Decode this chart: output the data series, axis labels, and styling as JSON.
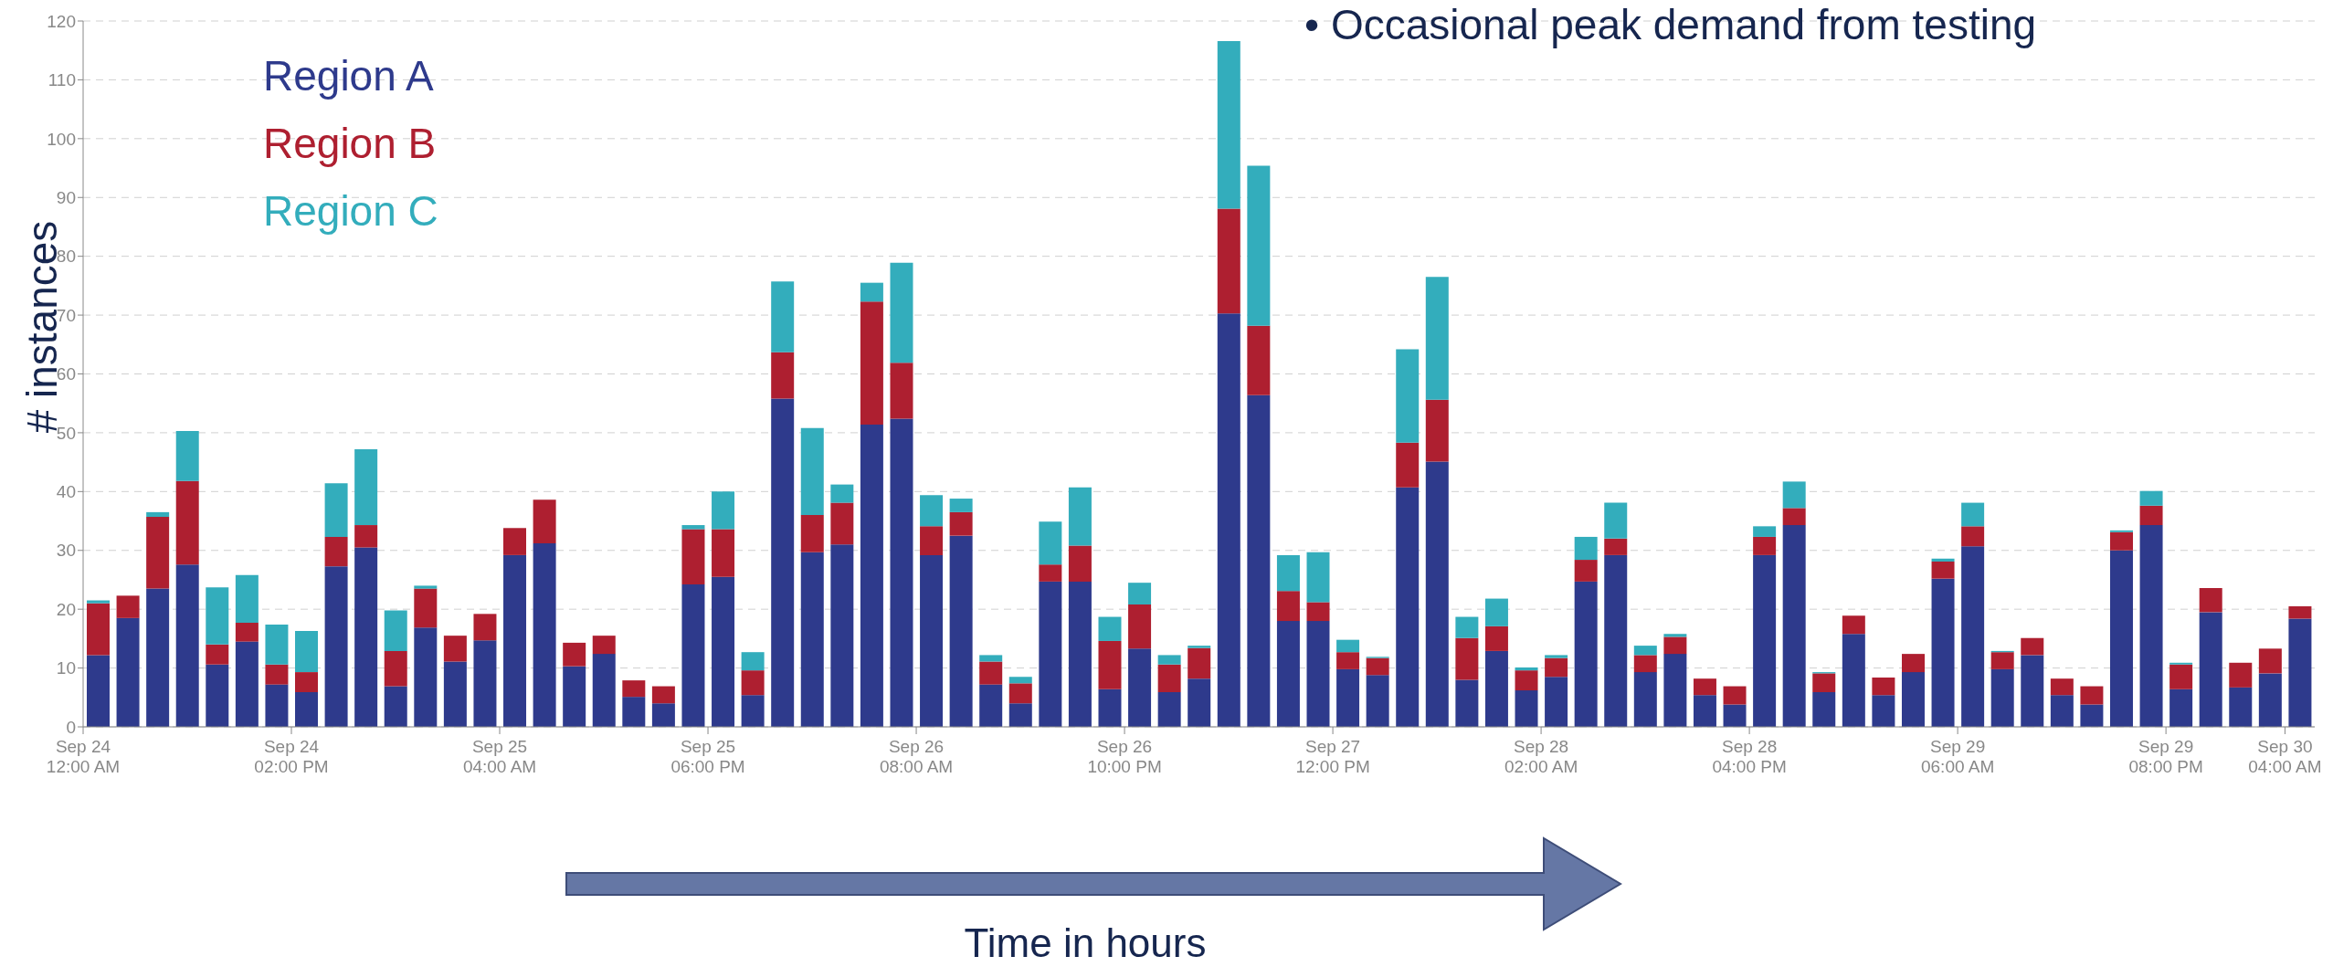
{
  "chart_data": {
    "type": "bar",
    "stacked": true,
    "ylabel": "# instances",
    "xlabel": "Time in hours",
    "annotations": [
      "• Occasional peak demand from testing"
    ],
    "x": [
      "--09-24T01:00",
      "--09-24T03:00",
      "--09-24T05:00",
      "--09-24T07:00",
      "--09-24T09:00",
      "--09-24T11:00",
      "--09-24T13:00",
      "--09-24T15:00",
      "--09-24T17:00",
      "--09-24T19:00",
      "--09-24T21:00",
      "--09-24T23:00",
      "--09-25T01:00",
      "--09-25T03:00",
      "--09-25T05:00",
      "--09-25T07:00",
      "--09-25T09:00",
      "--09-25T11:00",
      "--09-25T13:00",
      "--09-25T15:00",
      "--09-25T17:00",
      "--09-25T19:00",
      "--09-25T21:00",
      "--09-25T23:00",
      "--09-26T01:00",
      "--09-26T03:00",
      "--09-26T05:00",
      "--09-26T07:00",
      "--09-26T09:00",
      "--09-26T11:00",
      "--09-26T13:00",
      "--09-26T15:00",
      "--09-26T17:00",
      "--09-26T19:00",
      "--09-26T21:00",
      "--09-26T23:00",
      "--09-27T01:00",
      "--09-27T03:00",
      "--09-27T05:00",
      "--09-27T07:00",
      "--09-27T09:00",
      "--09-27T11:00",
      "--09-27T13:00",
      "--09-27T15:00",
      "--09-27T17:00",
      "--09-27T19:00",
      "--09-27T21:00",
      "--09-27T23:00",
      "--09-28T01:00",
      "--09-28T03:00",
      "--09-28T05:00",
      "--09-28T07:00",
      "--09-28T09:00",
      "--09-28T11:00",
      "--09-28T13:00",
      "--09-28T15:00",
      "--09-28T17:00",
      "--09-28T19:00",
      "--09-28T21:00",
      "--09-28T23:00",
      "--09-29T01:00",
      "--09-29T03:00",
      "--09-29T05:00",
      "--09-29T07:00",
      "--09-29T09:00",
      "--09-29T11:00",
      "--09-29T13:00",
      "--09-29T15:00",
      "--09-29T17:00",
      "--09-29T19:00",
      "--09-29T21:00",
      "--09-29T23:00",
      "--09-30T01:00",
      "--09-30T03:00",
      "--09-30T05:00"
    ],
    "xlim": [
      "--09-24T00:00",
      "--09-30T06:00"
    ],
    "xticks": [
      {
        "value": "--09-24T00:00",
        "label": "Sep 24\n12:00 AM"
      },
      {
        "value": "--09-24T14:00",
        "label": "Sep 24\n02:00 PM"
      },
      {
        "value": "--09-25T04:00",
        "label": "Sep 25\n04:00 AM"
      },
      {
        "value": "--09-25T18:00",
        "label": "Sep 25\n06:00 PM"
      },
      {
        "value": "--09-26T08:00",
        "label": "Sep 26\n08:00 AM"
      },
      {
        "value": "--09-26T22:00",
        "label": "Sep 26\n10:00 PM"
      },
      {
        "value": "--09-27T12:00",
        "label": "Sep 27\n12:00 PM"
      },
      {
        "value": "--09-28T02:00",
        "label": "Sep 28\n02:00 AM"
      },
      {
        "value": "--09-28T16:00",
        "label": "Sep 28\n04:00 PM"
      },
      {
        "value": "--09-29T06:00",
        "label": "Sep 29\n06:00 AM"
      },
      {
        "value": "--09-29T20:00",
        "label": "Sep 29\n08:00 PM"
      },
      {
        "value": "--09-30T04:00",
        "label": "Sep 30\n04:00 AM"
      }
    ],
    "ylim": [
      0,
      120
    ],
    "yticks": [
      0,
      10,
      20,
      30,
      40,
      50,
      60,
      70,
      80,
      90,
      100,
      110,
      120
    ],
    "grid": "y",
    "legend": "top left",
    "series": [
      {
        "name": "Region A",
        "color": "#2e3a8c",
        "values": [
          12.2,
          18.5,
          23.5,
          27.6,
          10.6,
          14.5,
          7.2,
          5.9,
          27.3,
          30.5,
          6.9,
          16.9,
          11.1,
          14.7,
          29.2,
          31.2,
          10.3,
          12.4,
          5.1,
          4.0,
          24.2,
          25.5,
          5.4,
          55.8,
          29.7,
          31.0,
          51.4,
          52.4,
          29.2,
          32.5,
          7.2,
          4.0,
          24.7,
          24.7,
          6.4,
          13.3,
          5.9,
          8.2,
          70.3,
          56.4,
          18.0,
          18.0,
          9.8,
          8.8,
          40.7,
          45.1,
          8.0,
          12.9,
          6.2,
          8.5,
          24.7,
          29.2,
          9.3,
          12.4,
          5.4,
          3.8,
          29.2,
          34.3,
          5.9,
          15.8,
          5.4,
          9.3,
          25.2,
          30.7,
          9.8,
          12.2,
          5.4,
          3.8,
          30.0,
          34.3,
          6.4,
          19.5,
          6.7,
          9.1,
          18.4
        ]
      },
      {
        "name": "Region B",
        "color": "#ae1f30",
        "values": [
          8.8,
          3.8,
          12.2,
          14.2,
          3.4,
          3.2,
          3.4,
          3.4,
          5.0,
          3.8,
          6.0,
          6.6,
          4.4,
          4.5,
          4.6,
          7.4,
          4.0,
          3.1,
          2.8,
          2.9,
          9.4,
          8.1,
          4.2,
          7.9,
          6.3,
          7.1,
          20.9,
          9.5,
          4.9,
          4.0,
          3.9,
          3.4,
          2.9,
          6.1,
          8.2,
          7.5,
          4.7,
          5.2,
          17.8,
          11.8,
          5.1,
          3.2,
          2.9,
          2.9,
          7.6,
          10.5,
          7.1,
          4.2,
          3.4,
          3.2,
          3.7,
          2.8,
          2.9,
          2.9,
          2.8,
          3.1,
          3.1,
          2.9,
          3.2,
          3.1,
          3.0,
          3.1,
          2.9,
          3.4,
          2.9,
          2.9,
          2.8,
          3.1,
          3.1,
          3.3,
          4.2,
          4.1,
          4.2,
          4.2,
          2.1
        ]
      },
      {
        "name": "Region C",
        "color": "#33adbc",
        "values": [
          0.5,
          0,
          0.8,
          8.5,
          9.7,
          8.1,
          6.8,
          7.0,
          9.1,
          12.9,
          6.9,
          0.5,
          0,
          0,
          0,
          0,
          0,
          0,
          0,
          0,
          0.7,
          6.4,
          3.1,
          12.0,
          14.8,
          3.1,
          3.2,
          17.0,
          5.3,
          2.3,
          1.1,
          1.1,
          7.3,
          9.9,
          4.1,
          3.7,
          1.6,
          0.4,
          28.5,
          27.2,
          6.1,
          8.5,
          2.1,
          0.2,
          15.9,
          20.9,
          3.6,
          4.7,
          0.5,
          0.5,
          3.9,
          6.1,
          1.6,
          0.5,
          0,
          0,
          1.8,
          4.5,
          0.2,
          0,
          0,
          0,
          0.5,
          4.0,
          0.2,
          0,
          0,
          0,
          0.3,
          2.5,
          0.3,
          0,
          0,
          0,
          0
        ]
      }
    ]
  }
}
